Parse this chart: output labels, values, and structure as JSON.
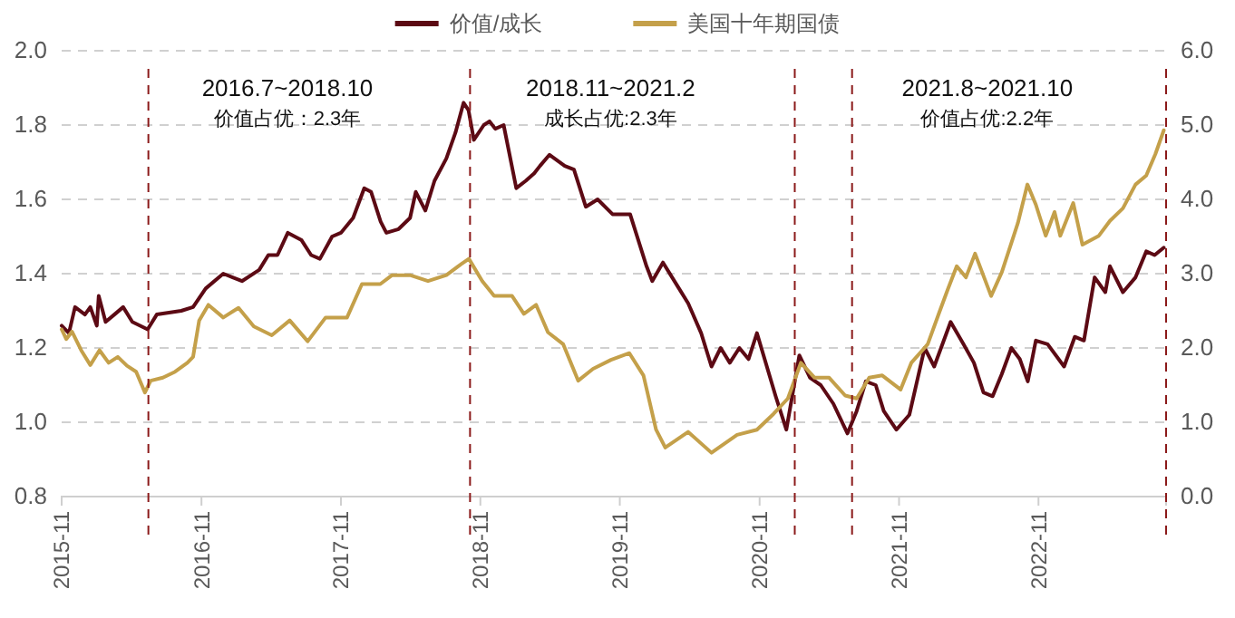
{
  "chart_data": {
    "type": "line",
    "legend": "top",
    "grid": "y",
    "line_style": "solid",
    "marker": "none",
    "xlim": [
      "2015-11-01",
      "2023-10-01"
    ],
    "xticks": [
      "2015-11",
      "2016-11",
      "2017-11",
      "2018-11",
      "2019-11",
      "2020-11",
      "2021-11",
      "2022-11"
    ],
    "ylim": [
      0.8,
      2.0
    ],
    "yticks": [
      {
        "value": 0.8,
        "label": "0.8"
      },
      {
        "value": 1.0,
        "label": "1.0"
      },
      {
        "value": 1.2,
        "label": "1.2"
      },
      {
        "value": 1.4,
        "label": "1.4"
      },
      {
        "value": 1.6,
        "label": "1.6"
      },
      {
        "value": 1.8,
        "label": "1.8"
      },
      {
        "value": 2.0,
        "label": "2.0"
      }
    ],
    "y2lim": [
      0,
      6
    ],
    "y2ticks": [
      {
        "value": 0,
        "label": "0.0"
      },
      {
        "value": 1,
        "label": "1.0"
      },
      {
        "value": 2,
        "label": "2.0"
      },
      {
        "value": 3,
        "label": "3.0"
      },
      {
        "value": 4,
        "label": "4.0"
      },
      {
        "value": 5,
        "label": "5.0"
      },
      {
        "value": 6,
        "label": "6.0"
      }
    ],
    "series": [
      {
        "name": "价值/成长",
        "color": "#5c0a14",
        "x": [
          "2015-11-01",
          "2015-11-20",
          "2015-12-06",
          "2016-01-01",
          "2016-01-15",
          "2016-02-01",
          "2016-02-06",
          "2016-02-24",
          "2016-03-18",
          "2016-04-10",
          "2016-05-04",
          "2016-06-13",
          "2016-07-07",
          "2016-09-09",
          "2016-10-10",
          "2016-11-12",
          "2016-12-28",
          "2017-02-15",
          "2017-04-01",
          "2017-04-25",
          "2017-05-19",
          "2017-06-15",
          "2017-07-21",
          "2017-08-15",
          "2017-09-07",
          "2017-10-09",
          "2017-11-01",
          "2017-12-03",
          "2018-01-01",
          "2018-01-19",
          "2018-02-13",
          "2018-02-28",
          "2018-04-01",
          "2018-05-01",
          "2018-05-16",
          "2018-06-10",
          "2018-07-04",
          "2018-08-04",
          "2018-08-28",
          "2018-09-18",
          "2018-10-01",
          "2018-10-15",
          "2018-11-10",
          "2018-11-25",
          "2018-12-10",
          "2019-01-01",
          "2019-02-03",
          "2019-02-28",
          "2019-03-22",
          "2019-04-06",
          "2019-05-01",
          "2019-06-10",
          "2019-07-04",
          "2019-08-04",
          "2019-09-04",
          "2019-10-13",
          "2019-11-28",
          "2020-01-10",
          "2020-01-25",
          "2020-02-22",
          "2020-04-04",
          "2020-04-28",
          "2020-06-01",
          "2020-06-28",
          "2020-07-22",
          "2020-08-15",
          "2020-09-09",
          "2020-10-03",
          "2020-10-25",
          "2020-12-13",
          "2021-01-10",
          "2021-02-13",
          "2021-03-13",
          "2021-04-10",
          "2021-05-13",
          "2021-06-19",
          "2021-07-13",
          "2021-08-06",
          "2021-09-01",
          "2021-09-22",
          "2021-10-25",
          "2021-11-28",
          "2022-01-07",
          "2022-02-01",
          "2022-03-16",
          "2022-04-19",
          "2022-05-16",
          "2022-06-10",
          "2022-07-04",
          "2022-07-28",
          "2022-08-22",
          "2022-09-13",
          "2022-10-04",
          "2022-10-25",
          "2022-11-25",
          "2023-01-07",
          "2023-02-04",
          "2023-02-28",
          "2023-03-28",
          "2023-04-25",
          "2023-05-07",
          "2023-06-10",
          "2023-07-13",
          "2023-08-10",
          "2023-09-01",
          "2023-09-25"
        ],
        "values": [
          1.26,
          1.24,
          1.31,
          1.29,
          1.31,
          1.26,
          1.34,
          1.27,
          1.29,
          1.31,
          1.27,
          1.25,
          1.29,
          1.3,
          1.31,
          1.36,
          1.4,
          1.38,
          1.41,
          1.45,
          1.45,
          1.51,
          1.49,
          1.45,
          1.44,
          1.5,
          1.51,
          1.55,
          1.63,
          1.62,
          1.54,
          1.51,
          1.52,
          1.55,
          1.62,
          1.57,
          1.65,
          1.71,
          1.78,
          1.86,
          1.84,
          1.76,
          1.8,
          1.81,
          1.79,
          1.8,
          1.63,
          1.65,
          1.67,
          1.69,
          1.72,
          1.69,
          1.68,
          1.58,
          1.6,
          1.56,
          1.56,
          1.42,
          1.38,
          1.43,
          1.36,
          1.32,
          1.24,
          1.15,
          1.2,
          1.16,
          1.2,
          1.17,
          1.24,
          1.07,
          0.98,
          1.18,
          1.12,
          1.1,
          1.05,
          0.97,
          1.03,
          1.11,
          1.1,
          1.03,
          0.98,
          1.02,
          1.2,
          1.15,
          1.27,
          1.21,
          1.16,
          1.08,
          1.07,
          1.13,
          1.2,
          1.17,
          1.11,
          1.22,
          1.21,
          1.15,
          1.23,
          1.22,
          1.39,
          1.35,
          1.42,
          1.35,
          1.39,
          1.46,
          1.45,
          1.47
        ]
      },
      {
        "name": "美国十年期国债",
        "color": "#c4a04a",
        "axis": "y2",
        "x": [
          "2015-11-01",
          "2015-11-13",
          "2015-11-28",
          "2015-12-22",
          "2016-01-15",
          "2016-02-08",
          "2016-03-03",
          "2016-03-27",
          "2016-04-20",
          "2016-05-14",
          "2016-06-06",
          "2016-06-21",
          "2016-07-23",
          "2016-08-24",
          "2016-09-25",
          "2016-10-10",
          "2016-10-26",
          "2016-11-19",
          "2016-12-28",
          "2017-02-06",
          "2017-03-18",
          "2017-05-04",
          "2017-06-20",
          "2017-08-06",
          "2017-09-22",
          "2017-11-17",
          "2017-12-26",
          "2018-02-12",
          "2018-03-15",
          "2018-05-01",
          "2018-06-17",
          "2018-08-04",
          "2018-09-04",
          "2018-10-02",
          "2018-11-06",
          "2018-12-07",
          "2019-01-23",
          "2019-02-23",
          "2019-03-27",
          "2019-04-27",
          "2019-06-06",
          "2019-07-15",
          "2019-08-23",
          "2019-10-09",
          "2019-11-26",
          "2020-01-02",
          "2020-02-04",
          "2020-02-28",
          "2020-04-28",
          "2020-06-28",
          "2020-09-03",
          "2020-10-25",
          "2020-12-07",
          "2021-01-14",
          "2021-02-17",
          "2021-03-25",
          "2021-05-02",
          "2021-06-13",
          "2021-07-13",
          "2021-08-15",
          "2021-09-18",
          "2021-11-05",
          "2021-12-03",
          "2022-01-15",
          "2022-02-13",
          "2022-03-08",
          "2022-04-01",
          "2022-04-25",
          "2022-05-19",
          "2022-06-30",
          "2022-07-28",
          "2022-09-08",
          "2022-10-03",
          "2022-10-25",
          "2022-11-20",
          "2022-12-13",
          "2022-12-28",
          "2023-01-31",
          "2023-02-24",
          "2023-04-08",
          "2023-05-07",
          "2023-06-10",
          "2023-07-13",
          "2023-08-10",
          "2023-09-03",
          "2023-09-25"
        ],
        "values": [
          2.25,
          2.12,
          2.22,
          1.97,
          1.77,
          1.97,
          1.8,
          1.88,
          1.76,
          1.68,
          1.4,
          1.56,
          1.6,
          1.68,
          1.8,
          1.88,
          2.37,
          2.58,
          2.41,
          2.54,
          2.29,
          2.17,
          2.37,
          2.09,
          2.41,
          2.41,
          2.86,
          2.86,
          2.98,
          2.98,
          2.9,
          2.98,
          3.1,
          3.2,
          2.9,
          2.7,
          2.7,
          2.46,
          2.58,
          2.21,
          2.05,
          1.56,
          1.72,
          1.84,
          1.93,
          1.63,
          0.9,
          0.66,
          0.87,
          0.59,
          0.83,
          0.9,
          1.11,
          1.32,
          1.8,
          1.6,
          1.6,
          1.36,
          1.32,
          1.6,
          1.63,
          1.44,
          1.8,
          2.05,
          2.46,
          2.78,
          3.1,
          2.95,
          3.27,
          2.7,
          3.02,
          3.68,
          4.2,
          3.93,
          3.51,
          3.83,
          3.51,
          3.95,
          3.39,
          3.51,
          3.71,
          3.88,
          4.2,
          4.32,
          4.61,
          4.93
        ]
      }
    ],
    "ref_lines": [
      {
        "axis": "x",
        "value": "2016-06-15",
        "color": "#8b1a1a",
        "line_style": "dashed"
      },
      {
        "axis": "x",
        "value": "2018-10-05",
        "color": "#8b1a1a",
        "line_style": "dashed"
      },
      {
        "axis": "x",
        "value": "2021-02-01",
        "color": "#8b1a1a",
        "line_style": "dashed"
      },
      {
        "axis": "x",
        "value": "2021-07-01",
        "color": "#8b1a1a",
        "line_style": "dashed"
      },
      {
        "axis": "x",
        "value": "2023-10-01",
        "color": "#8b1a1a",
        "line_style": "dashed"
      }
    ],
    "annotations": [
      "2016.7~2018.10",
      "价值占优：2.3年",
      "2018.11~2021.2",
      "成长占优:2.3年",
      "2021.8~2021.10",
      "价值占优:2.2年"
    ]
  }
}
